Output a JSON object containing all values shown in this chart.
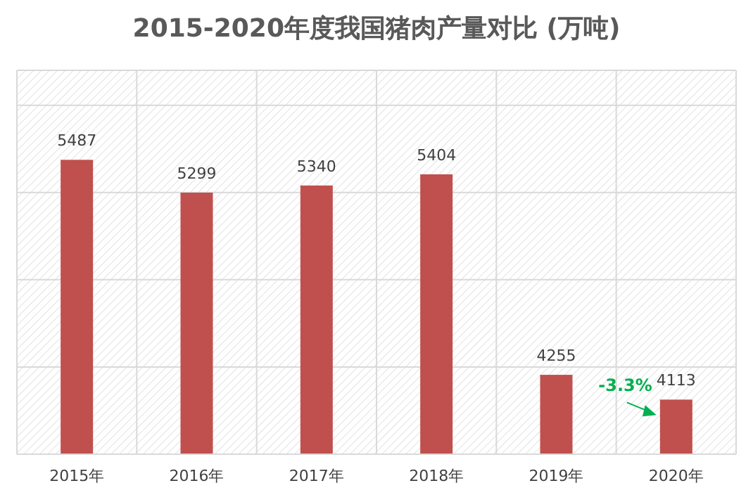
{
  "chart_data": {
    "type": "bar",
    "title": "2015-2020年度我国猪肉产量对比 (万吨)",
    "categories": [
      "2015年",
      "2016年",
      "2017年",
      "2018年",
      "2019年",
      "2020年"
    ],
    "values": [
      5487,
      5299,
      5340,
      5404,
      4255,
      4113
    ],
    "color": "#c0504d",
    "ylim": [
      3800,
      6000
    ],
    "yticks": [
      {
        "value": 4300,
        "label": null
      },
      {
        "value": 4800,
        "label": null
      },
      {
        "value": 5300,
        "label": null
      },
      {
        "value": 5800,
        "label": null
      }
    ],
    "tick_labels": "x",
    "grid": true,
    "data_labels": true,
    "annotations": [
      {
        "text": "-3.3%",
        "x": "2020年",
        "y": 4113
      }
    ]
  }
}
